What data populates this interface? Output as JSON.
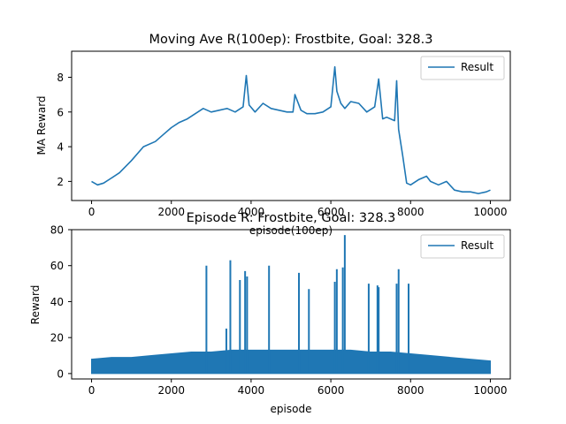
{
  "chart_data": [
    {
      "type": "line",
      "title": "Moving Ave R(100ep): Frostbite, Goal: 328.3",
      "xlabel": "episode(100ep)",
      "ylabel": "MA Reward",
      "xlim": [
        -500,
        10500
      ],
      "ylim": [
        0.9,
        9.5
      ],
      "x_ticks": [
        0,
        2000,
        4000,
        6000,
        8000,
        10000
      ],
      "y_ticks": [
        2,
        4,
        6,
        8
      ],
      "legend": {
        "position": "top-right",
        "entries": [
          "Result"
        ]
      },
      "series": [
        {
          "name": "Result",
          "color": "#1f77b4",
          "x": [
            0,
            150,
            300,
            500,
            700,
            1000,
            1300,
            1600,
            1800,
            2000,
            2200,
            2400,
            2600,
            2800,
            3000,
            3200,
            3400,
            3600,
            3800,
            3880,
            3950,
            4100,
            4300,
            4500,
            4700,
            4900,
            5050,
            5100,
            5250,
            5400,
            5600,
            5800,
            6000,
            6100,
            6150,
            6250,
            6350,
            6500,
            6700,
            6900,
            7100,
            7200,
            7300,
            7400,
            7600,
            7650,
            7700,
            7800,
            7900,
            8000,
            8200,
            8400,
            8500,
            8700,
            8900,
            9100,
            9300,
            9500,
            9700,
            9900,
            10000
          ],
          "values": [
            2.0,
            1.8,
            1.9,
            2.2,
            2.5,
            3.2,
            4.0,
            4.3,
            4.7,
            5.1,
            5.4,
            5.6,
            5.9,
            6.2,
            6.0,
            6.1,
            6.2,
            6.0,
            6.3,
            8.1,
            6.4,
            6.0,
            6.5,
            6.2,
            6.1,
            6.0,
            6.0,
            7.0,
            6.1,
            5.9,
            5.9,
            6.0,
            6.3,
            8.6,
            7.2,
            6.5,
            6.2,
            6.6,
            6.5,
            6.0,
            6.3,
            7.9,
            5.6,
            5.7,
            5.5,
            7.8,
            5.0,
            3.5,
            1.9,
            1.8,
            2.1,
            2.3,
            2.0,
            1.8,
            2.0,
            1.5,
            1.4,
            1.4,
            1.3,
            1.4,
            1.5
          ]
        }
      ]
    },
    {
      "type": "line",
      "title": "Episode R: Frostbite, Goal: 328.3",
      "xlabel": "episode",
      "ylabel": "Reward",
      "xlim": [
        -500,
        10500
      ],
      "ylim": [
        -3,
        80
      ],
      "x_ticks": [
        0,
        2000,
        4000,
        6000,
        8000,
        10000
      ],
      "y_ticks": [
        0,
        20,
        40,
        60,
        80
      ],
      "legend": {
        "position": "top-right",
        "entries": [
          "Result"
        ]
      },
      "series": [
        {
          "name": "Result",
          "color": "#1f77b4",
          "band_x": [
            0,
            500,
            1000,
            1500,
            2000,
            2500,
            3000,
            3500,
            4000,
            4500,
            5000,
            5500,
            6000,
            6500,
            7000,
            7500,
            8000,
            8500,
            9000,
            9500,
            10000
          ],
          "band_high": [
            8,
            9,
            9,
            10,
            11,
            12,
            12,
            13,
            13,
            13,
            13,
            13,
            13,
            13,
            12,
            12,
            11,
            10,
            9,
            8,
            7
          ],
          "band_low": [
            0,
            0,
            0,
            0,
            0,
            0,
            0,
            0,
            0,
            0,
            0,
            0,
            0,
            0,
            0,
            0,
            0,
            0,
            0,
            0,
            0
          ],
          "spikes_x": [
            2880,
            3380,
            3480,
            3720,
            3850,
            3900,
            4450,
            5200,
            5450,
            6100,
            6150,
            6300,
            6350,
            6950,
            7170,
            7200,
            7650,
            7700,
            7950
          ],
          "spikes_y": [
            60,
            25,
            63,
            52,
            57,
            54,
            60,
            56,
            47,
            51,
            58,
            59,
            77,
            50,
            49,
            48,
            50,
            58,
            50
          ]
        }
      ]
    }
  ]
}
